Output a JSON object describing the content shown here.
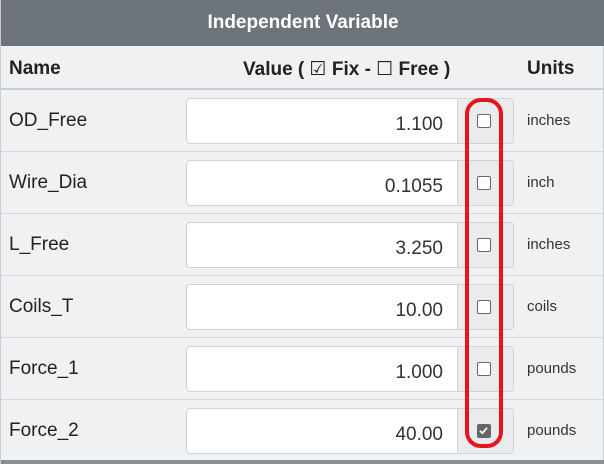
{
  "panel": {
    "title": "Independent Variable"
  },
  "columns": {
    "name": "Name",
    "value_prefix": "Value (",
    "fix_label": "Fix -",
    "free_label": "Free )",
    "units": "Units"
  },
  "rows": [
    {
      "name": "OD_Free",
      "value": "1.100",
      "fixed": false,
      "unit": "inches"
    },
    {
      "name": "Wire_Dia",
      "value": "0.1055",
      "fixed": false,
      "unit": "inch"
    },
    {
      "name": "L_Free",
      "value": "3.250",
      "fixed": false,
      "unit": "inches"
    },
    {
      "name": "Coils_T",
      "value": "10.00",
      "fixed": false,
      "unit": "coils"
    },
    {
      "name": "Force_1",
      "value": "1.000",
      "fixed": false,
      "unit": "pounds"
    },
    {
      "name": "Force_2",
      "value": "40.00",
      "fixed": true,
      "unit": "pounds"
    }
  ],
  "colors": {
    "title_bar": "#6d737a",
    "annotation": "#e8141c"
  }
}
